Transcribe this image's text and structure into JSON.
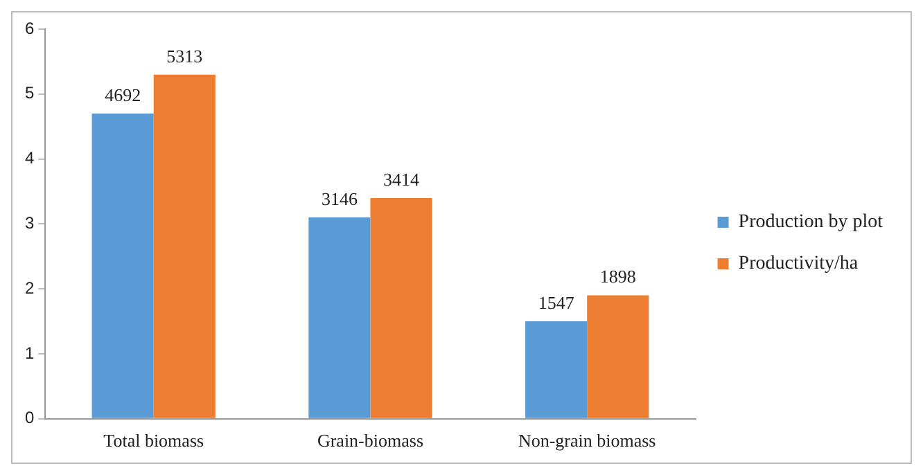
{
  "chart_data": {
    "type": "bar",
    "categories": [
      "Total biomass",
      "Grain-biomass",
      "Non-grain biomass"
    ],
    "series": [
      {
        "name": "Production by plot",
        "color": "#5b9bd5",
        "values": [
          4.7,
          3.1,
          1.5
        ]
      },
      {
        "name": "Productivity/ha",
        "color": "#ed7d31",
        "values": [
          5.3,
          3.4,
          1.9
        ]
      }
    ],
    "annotations": [
      {
        "text": "4692",
        "x": "Total biomass",
        "y": 4.7
      },
      {
        "text": "3146",
        "x": "Grain-biomass",
        "y": 3.1
      },
      {
        "text": "1547",
        "x": "Non-grain biomass",
        "y": 1.5
      },
      {
        "text": "5313",
        "x": "Total biomass",
        "y": 5.3
      },
      {
        "text": "3414",
        "x": "Grain-biomass",
        "y": 3.4
      },
      {
        "text": "1898",
        "x": "Non-grain biomass",
        "y": 1.9
      }
    ],
    "ylim": [
      0,
      6
    ],
    "yticks": [
      0,
      1,
      2,
      3,
      4,
      5,
      6
    ],
    "grid": false,
    "legend": "right"
  }
}
